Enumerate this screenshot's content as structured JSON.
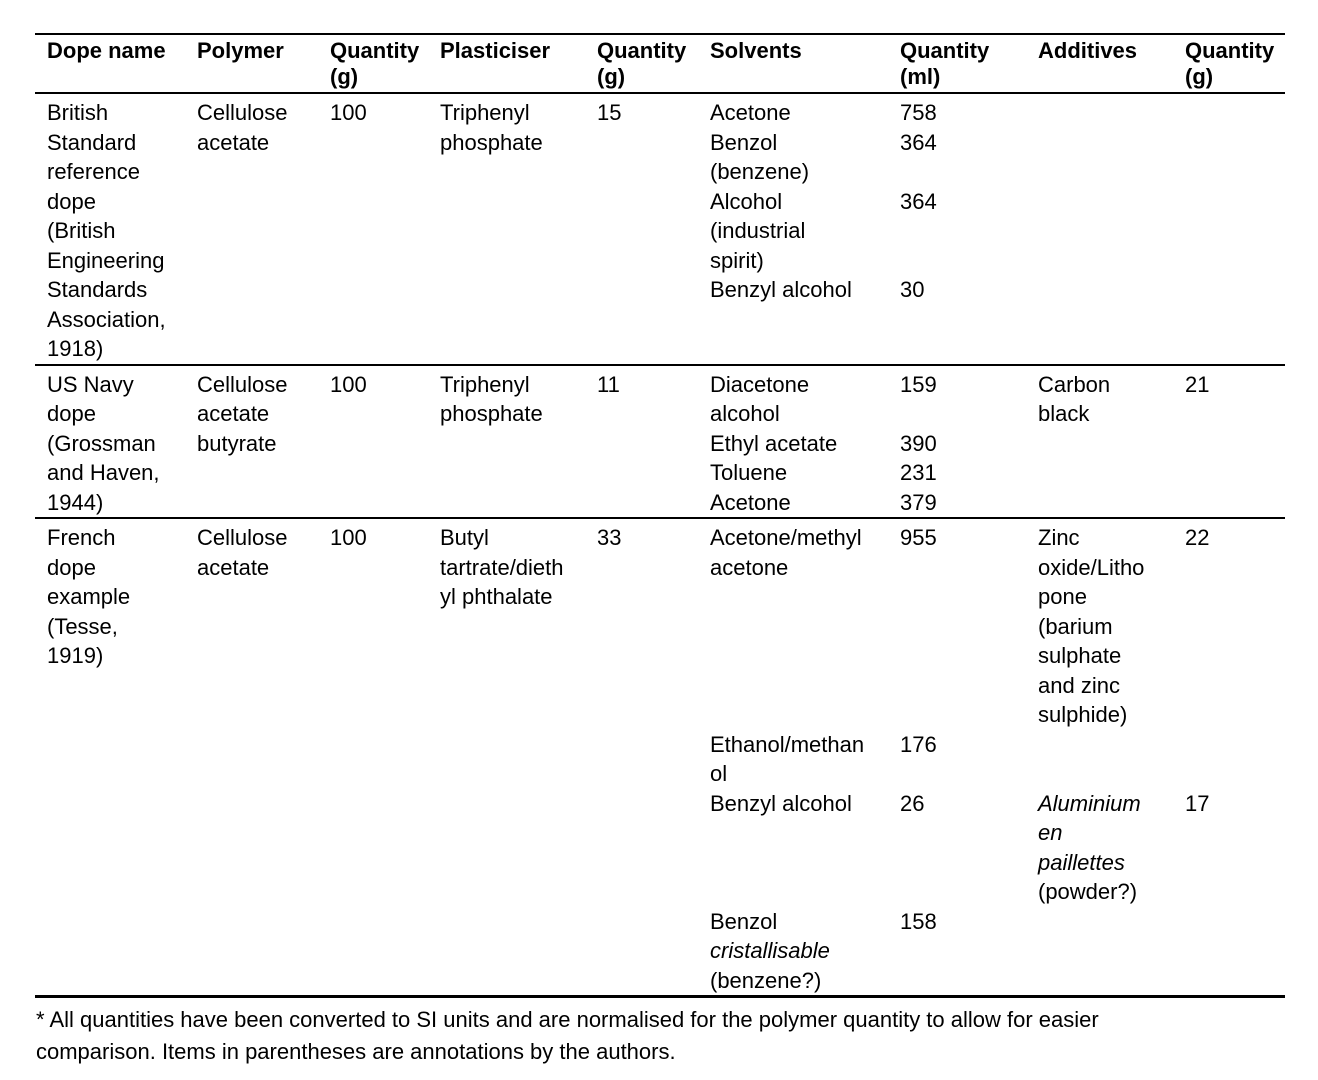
{
  "colors": {
    "text": "#000000",
    "background": "#ffffff",
    "rule": "#000000"
  },
  "table": {
    "headers": [
      "Dope name",
      "Polymer",
      "Quantity\n(g)",
      "Plasticiser",
      "Quantity\n(g)",
      "Solvents",
      "Quantity\n(ml)",
      "Additives",
      "Quantity\n(g)"
    ],
    "rows": [
      {
        "dope_name": "British\nStandard\nreference\ndope\n(British\nEngineering\nStandards\nAssociation,\n1918)",
        "polymer": "Cellulose\nacetate",
        "polymer_quantity_g": "100",
        "plasticiser": "Triphenyl\nphosphate",
        "plasticiser_quantity_g": "15",
        "subrows": [
          {
            "solvent": [
              {
                "t": "Acetone"
              }
            ],
            "solvent_quantity_ml": "758",
            "additive": [],
            "additive_quantity_g": ""
          },
          {
            "solvent": [
              {
                "t": "Benzol\n(benzene)"
              }
            ],
            "solvent_quantity_ml": "364",
            "additive": [],
            "additive_quantity_g": ""
          },
          {
            "solvent": [
              {
                "t": "Alcohol\n(industrial\nspirit)"
              }
            ],
            "solvent_quantity_ml": "364",
            "additive": [],
            "additive_quantity_g": ""
          },
          {
            "solvent": [
              {
                "t": "Benzyl alcohol"
              }
            ],
            "solvent_quantity_ml": "30",
            "additive": [],
            "additive_quantity_g": ""
          }
        ]
      },
      {
        "dope_name": "US Navy\ndope\n(Grossman\nand Haven,\n1944)",
        "polymer": "Cellulose\nacetate\nbutyrate",
        "polymer_quantity_g": "100",
        "plasticiser": "Triphenyl\nphosphate",
        "plasticiser_quantity_g": "11",
        "subrows": [
          {
            "solvent": [
              {
                "t": "Diacetone\nalcohol"
              }
            ],
            "solvent_quantity_ml": "159",
            "additive": [
              {
                "t": "Carbon\nblack"
              }
            ],
            "additive_quantity_g": "21"
          },
          {
            "solvent": [
              {
                "t": "Ethyl acetate"
              }
            ],
            "solvent_quantity_ml": "390",
            "additive": [],
            "additive_quantity_g": ""
          },
          {
            "solvent": [
              {
                "t": "Toluene"
              }
            ],
            "solvent_quantity_ml": "231",
            "additive": [],
            "additive_quantity_g": ""
          },
          {
            "solvent": [
              {
                "t": "Acetone"
              }
            ],
            "solvent_quantity_ml": "379",
            "additive": [],
            "additive_quantity_g": ""
          }
        ]
      },
      {
        "dope_name": "French\ndope\nexample\n(Tesse,\n1919)",
        "polymer": "Cellulose\nacetate",
        "polymer_quantity_g": "100",
        "plasticiser": "Butyl\ntartrate/dieth\nyl phthalate",
        "plasticiser_quantity_g": "33",
        "subrows": [
          {
            "solvent": [
              {
                "t": "Acetone/methyl\nacetone"
              }
            ],
            "solvent_quantity_ml": "955",
            "additive": [
              {
                "t": "Zinc\noxide/Litho\npone\n(barium\nsulphate\nand zinc\nsulphide)"
              }
            ],
            "additive_quantity_g": "22"
          },
          {
            "solvent": [
              {
                "t": "Ethanol/methan\nol"
              }
            ],
            "solvent_quantity_ml": "176",
            "additive": [],
            "additive_quantity_g": ""
          },
          {
            "solvent": [
              {
                "t": "Benzyl alcohol"
              }
            ],
            "solvent_quantity_ml": "26",
            "additive": [
              {
                "t": "Aluminium\nen\npaillettes\n",
                "i": true
              },
              {
                "t": "(powder?)"
              }
            ],
            "additive_quantity_g": "17"
          },
          {
            "solvent": [
              {
                "t": "Benzol\n"
              },
              {
                "t": "cristallisable\n",
                "i": true
              },
              {
                "t": "(benzene?)"
              }
            ],
            "solvent_quantity_ml": "158",
            "additive": [],
            "additive_quantity_g": ""
          }
        ]
      }
    ]
  },
  "footnote": "* All quantities have been converted to SI units and are normalised for the polymer quantity to allow for easier\ncomparison. Items in parentheses are annotations by the authors."
}
